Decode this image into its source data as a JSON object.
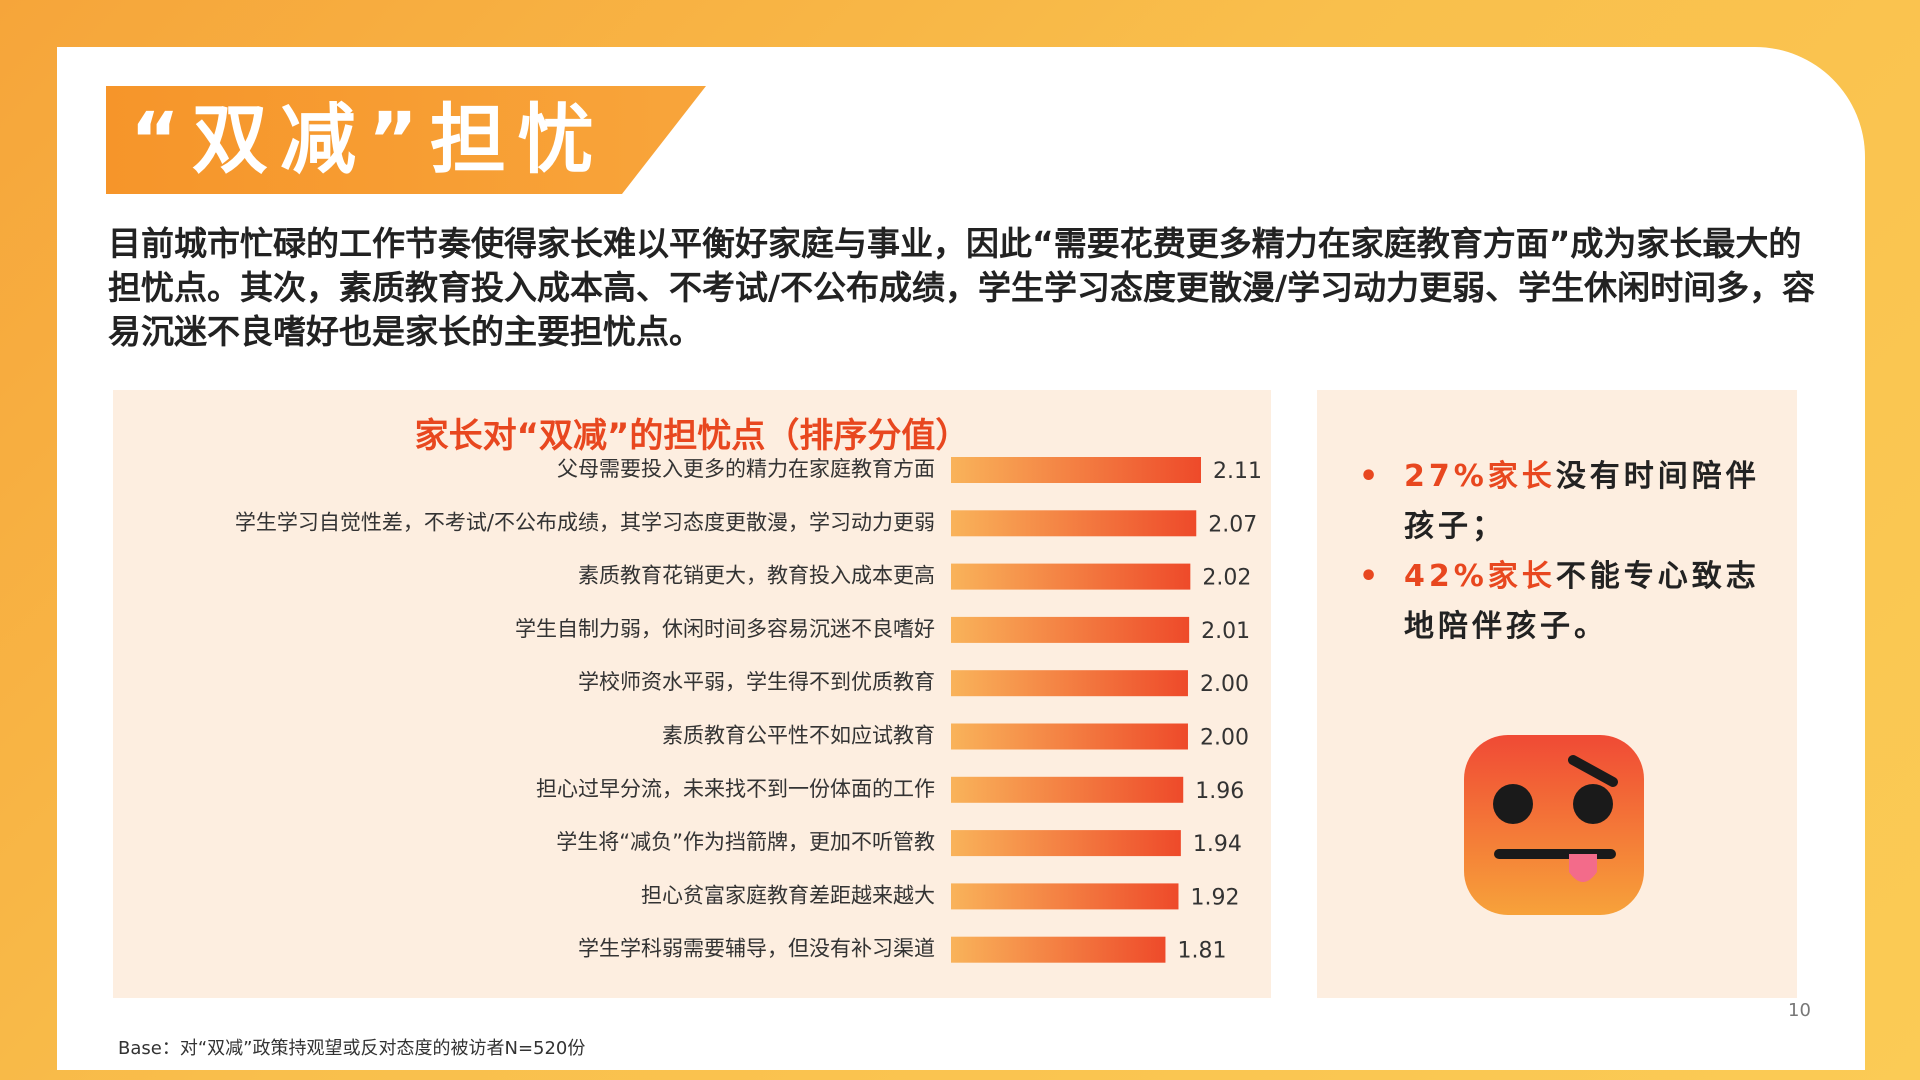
{
  "title": "“双减”担忧",
  "intro": "目前城市忙碌的工作节奏使得家长难以平衡好家庭与事业，因此“需要花费更多精力在家庭教育方面”成为家长最大的担忧点。其次，素质教育投入成本高、不考试/不公布成绩，学生学习态度更散漫/学习动力更弱、学生休闲时间多，容易沉迷不良嗜好也是家长的主要担忧点。",
  "chart_data": {
    "type": "bar",
    "orientation": "horizontal",
    "title": "家长对“双减”的担忧点（排序分值）",
    "categories": [
      "父母需要投入更多的精力在家庭教育方面",
      "学生学习自觉性差，不考试/不公布成绩，其学习态度更散漫，学习动力更弱",
      "素质教育花销更大，教育投入成本更高",
      "学生自制力弱，休闲时间多容易沉迷不良嗜好",
      "学校师资水平弱，学生得不到优质教育",
      "素质教育公平性不如应试教育",
      "担心过早分流，未来找不到一份体面的工作",
      "学生将“减负”作为挡箭牌，更加不听管教",
      "担心贫富家庭教育差距越来越大",
      "学生学科弱需要辅导，但没有补习渠道"
    ],
    "values": [
      2.11,
      2.07,
      2.02,
      2.01,
      2.0,
      2.0,
      1.96,
      1.94,
      1.92,
      1.81
    ],
    "value_labels": [
      "2.11",
      "2.07",
      "2.02",
      "2.01",
      "2.00",
      "2.00",
      "1.96",
      "1.94",
      "1.92",
      "1.81"
    ],
    "bar_color_start": "#f9b35a",
    "bar_color_end": "#ee4a2a",
    "grid": false,
    "legend": "none"
  },
  "side": {
    "bullet1": {
      "highlight": "27%家长",
      "text": "没有时间陪伴孩子；"
    },
    "bullet2": {
      "highlight": "42%家长",
      "text": "不能专心致志地陪伴孩子。"
    },
    "emoji_icon": "dizzy-face-icon"
  },
  "page_number": "10",
  "base_note": "Base：对“双减”政策持观望或反对态度的被访者N=520份",
  "colors": {
    "accent": "#e8471f",
    "banner": "#f6952a",
    "panel": "#fdeee0"
  }
}
